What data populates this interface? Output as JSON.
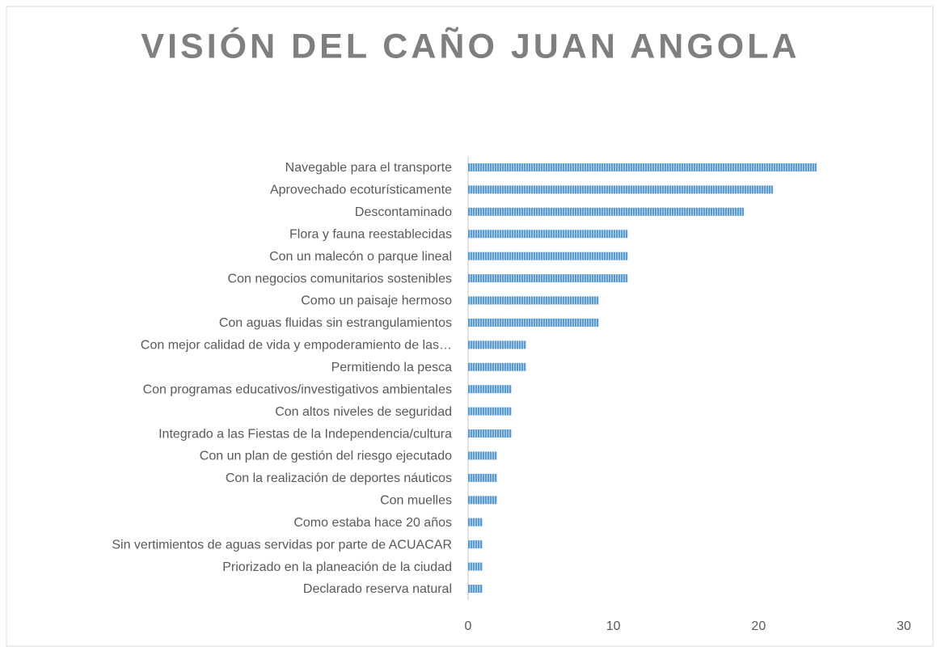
{
  "chart_data": {
    "type": "barh",
    "title": "VISIÓN DEL CAÑO JUAN ANGOLA",
    "categories": [
      "Navegable para el transporte",
      "Aprovechado ecoturísticamente",
      "Descontaminado",
      "Flora y fauna reestablecidas",
      "Con un malecón o parque lineal",
      "Con negocios comunitarios sostenibles",
      "Como un paisaje hermoso",
      "Con aguas fluidas sin estrangulamientos",
      "Con mejor calidad de vida y empoderamiento de las…",
      "Permitiendo la pesca",
      "Con programas educativos/investigativos ambientales",
      "Con altos niveles de seguridad",
      "Integrado a las Fiestas de la Independencia/cultura",
      "Con un plan de gestión del riesgo ejecutado",
      "Con la realización de deportes náuticos",
      "Con muelles",
      "Como estaba hace 20 años",
      "Sin vertimientos de aguas servidas por parte de ACUACAR",
      "Priorizado en la planeación de la ciudad",
      "Declarado reserva natural"
    ],
    "values": [
      24,
      21,
      19,
      11,
      11,
      11,
      9,
      9,
      4,
      4,
      3,
      3,
      3,
      2,
      2,
      2,
      1,
      1,
      1,
      1
    ],
    "color": "#5b9bd5",
    "xlim": [
      0,
      30
    ],
    "xticks": [
      0,
      10,
      20,
      30
    ],
    "grid": false
  }
}
